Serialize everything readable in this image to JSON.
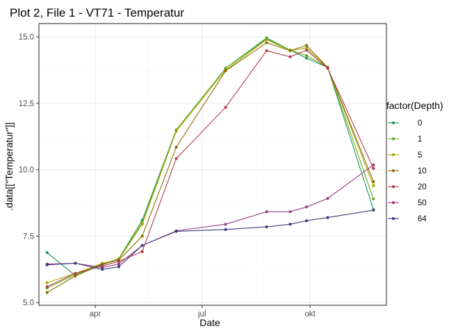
{
  "chart_data": {
    "type": "line",
    "title": "Plot 2, File 1 - VT71  -  Temperatur",
    "xlabel": "Date",
    "ylabel": ".data[[\"Temperatur\"]]",
    "ylim": [
      4.9,
      15.5
    ],
    "xlim": [
      "2020-02-13",
      "2020-12-05"
    ],
    "y_major_ticks": [
      5.0,
      7.5,
      10.0,
      12.5,
      15.0
    ],
    "y_tick_labels": [
      "5.0",
      "7.5",
      "10.0",
      "12.5",
      "15.0"
    ],
    "y_minor_ticks": [
      6.25,
      8.75,
      11.25,
      13.75
    ],
    "x_major_ticks": [
      "2020-04-01",
      "2020-07-01",
      "2020-10-01"
    ],
    "x_tick_labels": [
      "apr",
      "jul",
      "okt"
    ],
    "x_minor_ticks": [
      "2020-05-16",
      "2020-08-16"
    ],
    "grid": true,
    "legend": {
      "title": "factor(Depth)",
      "position": "right"
    },
    "x": [
      "2020-02-20",
      "2020-03-15",
      "2020-04-07",
      "2020-04-21",
      "2020-05-11",
      "2020-06-09",
      "2020-07-21",
      "2020-08-25",
      "2020-09-14",
      "2020-09-28",
      "2020-10-16",
      "2020-11-24"
    ],
    "series": [
      {
        "name": "0",
        "color": "#1a9850",
        "values": [
          6.88,
          6.02,
          6.42,
          6.65,
          8.1,
          11.5,
          13.82,
          14.96,
          14.5,
          14.2,
          13.85,
          8.5
        ]
      },
      {
        "name": "1",
        "color": "#66a61e",
        "values": [
          5.55,
          6.05,
          6.45,
          6.65,
          8.0,
          11.5,
          13.82,
          14.92,
          14.5,
          14.3,
          13.85,
          8.9
        ]
      },
      {
        "name": "5",
        "color": "#a6a800",
        "values": [
          5.75,
          6.1,
          6.48,
          6.62,
          7.95,
          11.45,
          13.75,
          14.9,
          14.48,
          14.58,
          13.85,
          9.4
        ]
      },
      {
        "name": "10",
        "color": "#8c6d00",
        "values": [
          5.38,
          6.0,
          6.45,
          6.6,
          7.5,
          10.85,
          13.72,
          14.78,
          14.48,
          14.68,
          13.85,
          9.55
        ]
      },
      {
        "name": "20",
        "color": "#b03a48",
        "values": [
          5.6,
          6.1,
          6.38,
          6.55,
          6.92,
          10.42,
          12.35,
          14.48,
          14.25,
          14.5,
          13.82,
          10.05
        ]
      },
      {
        "name": "50",
        "color": "#9a3d7a",
        "values": [
          6.45,
          6.48,
          6.32,
          6.45,
          7.15,
          7.7,
          7.95,
          8.42,
          8.42,
          8.6,
          8.92,
          10.18
        ]
      },
      {
        "name": "64",
        "color": "#3b3b7a",
        "values": [
          6.42,
          6.48,
          6.25,
          6.35,
          7.15,
          7.68,
          7.75,
          7.85,
          7.95,
          8.08,
          8.2,
          8.48
        ]
      }
    ]
  }
}
